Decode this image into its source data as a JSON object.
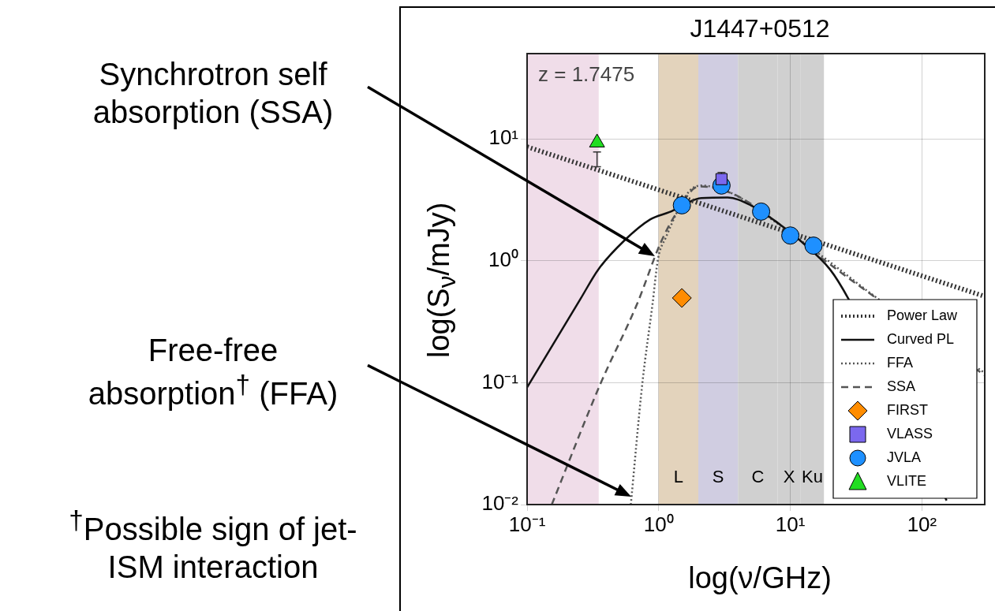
{
  "chart_data": {
    "type": "scatter",
    "title": "J1447+0512",
    "xlabel": "log(ν/GHz)",
    "ylabel": "log(S$_{ν}$/mJy)",
    "log": "xy",
    "xlim": [
      0.1,
      300
    ],
    "ylim": [
      0.01,
      50
    ],
    "xticks": [
      {
        "value": 0.1,
        "label": "10⁻¹"
      },
      {
        "value": 1,
        "label": "10⁰"
      },
      {
        "value": 10,
        "label": "10¹"
      },
      {
        "value": 100,
        "label": "10²"
      }
    ],
    "yticks": [
      {
        "value": 0.01,
        "label": "10⁻²"
      },
      {
        "value": 0.1,
        "label": "10⁻¹"
      },
      {
        "value": 1,
        "label": "10⁰"
      },
      {
        "value": 10,
        "label": "10¹"
      }
    ],
    "grid": true,
    "legend": "bottom right",
    "bands": [
      {
        "axis": "x",
        "from": 0.1,
        "to": 0.35,
        "color": "#f0dde9"
      },
      {
        "axis": "x",
        "from": 1,
        "to": 2,
        "label": "L",
        "color": "#e3d3bc"
      },
      {
        "axis": "x",
        "from": 2,
        "to": 4,
        "label": "S",
        "color": "#d0cde1"
      },
      {
        "axis": "x",
        "from": 4,
        "to": 8,
        "label": "C",
        "color": "#d0d0d0"
      },
      {
        "axis": "x",
        "from": 8,
        "to": 12,
        "label": "X",
        "color": "#d0d0d0"
      },
      {
        "axis": "x",
        "from": 12,
        "to": 18,
        "label": "Ku",
        "color": "#d0d0d0"
      }
    ],
    "annotations": [
      "z = 1.7475",
      "Synchrotron self absorption (SSA)",
      "Free-free absorption$^{†}$ (FFA)",
      "$^{†}$Possible sign of jet-ISM interaction"
    ],
    "series": [
      {
        "name": "Power Law",
        "type": "line",
        "color": "#333333",
        "line_style": "dotted",
        "x": [
          0.1,
          300
        ],
        "values": [
          8.6,
          0.51
        ]
      },
      {
        "name": "Curved PL",
        "type": "line",
        "color": "#111111",
        "line_style": "solid",
        "x": [
          0.1,
          0.255,
          0.348,
          0.543,
          0.861,
          1.2,
          2.11,
          3.34,
          5,
          8,
          12,
          20,
          27.6,
          154
        ],
        "values": [
          0.0914,
          0.488,
          0.849,
          1.45,
          2.18,
          2.5,
          3.26,
          3.3,
          2.85,
          2.05,
          1.45,
          0.85,
          0.488,
          0.0108
        ]
      },
      {
        "name": "FFA",
        "type": "line",
        "color": "#555555",
        "line_style": "dotted",
        "x": [
          0.614,
          0.751,
          0.897,
          0.987,
          1.13,
          1.69,
          2.11,
          3.62,
          6.84,
          19.4,
          43.8,
          300
        ],
        "values": [
          0.01,
          0.0986,
          0.44,
          1.03,
          1.54,
          3.67,
          4.14,
          3.56,
          2.27,
          1.0,
          0.51,
          0.12
        ]
      },
      {
        "name": "SSA",
        "type": "line",
        "color": "#555555",
        "line_style": "dashed",
        "x": [
          0.154,
          0.362,
          0.684,
          1.03,
          1.35,
          2.02,
          3.62,
          7.83,
          18.4,
          45.6,
          300
        ],
        "values": [
          0.01,
          0.0986,
          0.44,
          1.39,
          2.42,
          4.07,
          3.56,
          2.08,
          1.0,
          0.488,
          0.115
        ]
      },
      {
        "name": "FIRST",
        "type": "scatter",
        "color": "#ff8c00",
        "marker": "diamond",
        "x": [
          1.5
        ],
        "values": [
          0.495
        ]
      },
      {
        "name": "VLASS",
        "type": "scatter",
        "color": "#7b68ee",
        "marker": "square",
        "x": [
          3
        ],
        "values": [
          4.67
        ],
        "errors": [
          [
            4.3,
            5.3
          ]
        ]
      },
      {
        "name": "JVLA",
        "type": "scatter",
        "color": "#1e90ff",
        "marker": "circle",
        "x": [
          1.5,
          3,
          6,
          10,
          15
        ],
        "values": [
          2.85,
          4.14,
          2.53,
          1.61,
          1.33
        ]
      },
      {
        "name": "VLITE",
        "type": "scatter",
        "color": "#22dd22",
        "marker": "triangle",
        "x": [
          0.34
        ],
        "values": [
          9.3
        ],
        "errors": [
          [
            5.9,
            7.8
          ]
        ]
      }
    ]
  }
}
